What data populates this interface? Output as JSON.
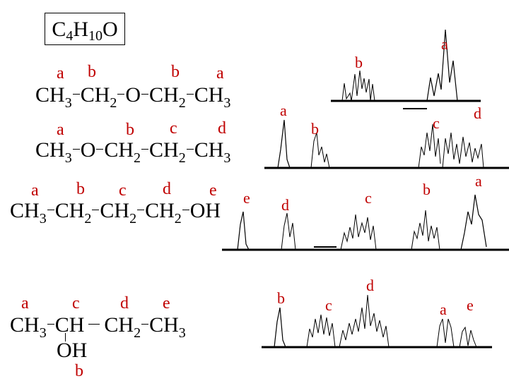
{
  "formula": {
    "main": "C",
    "n1": "4",
    "h": "H",
    "n2": "10",
    "o": "O"
  },
  "structures": [
    {
      "labels": [
        "a",
        "b",
        "b",
        "a"
      ],
      "parts": [
        "CH",
        "3",
        "CH",
        "2",
        "O",
        "CH",
        "2",
        "CH",
        "3"
      ]
    },
    {
      "labels": [
        "a",
        "b",
        "c",
        "d"
      ],
      "parts": [
        "CH",
        "3",
        "O",
        "CH",
        "2",
        "CH",
        "2",
        "CH",
        "3"
      ]
    },
    {
      "labels": [
        "a",
        "b",
        "c",
        "d",
        "e"
      ],
      "parts": [
        "CH",
        "3",
        "CH",
        "2",
        "CH",
        "2",
        "CH",
        "2",
        "OH"
      ]
    },
    {
      "labels": [
        "a",
        "c",
        "d",
        "e",
        "b"
      ],
      "parts": [
        "CH",
        "3",
        "CH",
        "CH",
        "2",
        "CH",
        "3",
        "OH"
      ]
    }
  ],
  "spectra_labels": [
    [
      "b",
      "a"
    ],
    [
      "a",
      "b",
      "c",
      "d"
    ],
    [
      "e",
      "d",
      "c",
      "b",
      "a"
    ],
    [
      "b",
      "c",
      "d",
      "a",
      "e"
    ]
  ],
  "colors": {
    "label": "#c00000",
    "ink": "#000000"
  }
}
